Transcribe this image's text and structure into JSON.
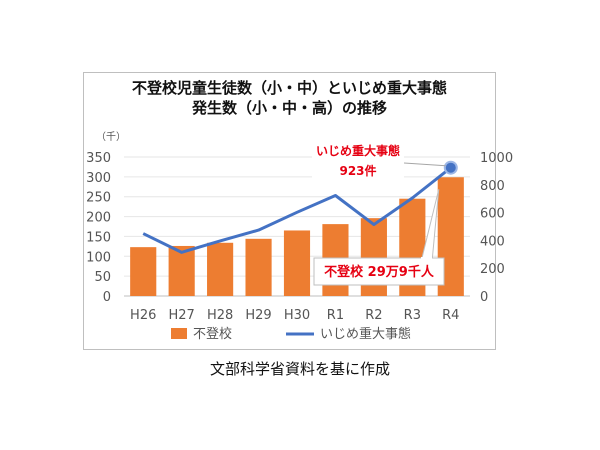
{
  "chart_data": {
    "type": "bar+line",
    "title_line1": "不登校児童生徒数（小・中）といじめ重大事態",
    "title_line2": "発生数（小・中・高）の推移",
    "left_axis_unit": "（千）",
    "categories": [
      "H26",
      "H27",
      "H28",
      "H29",
      "H30",
      "R1",
      "R2",
      "R3",
      "R4"
    ],
    "left_ticks": [
      "350",
      "300",
      "250",
      "200",
      "150",
      "100",
      "50",
      "0"
    ],
    "right_ticks": [
      "1000",
      "800",
      "600",
      "400",
      "200",
      "0"
    ],
    "ylim_left": [
      0,
      350
    ],
    "ylim_right": [
      0,
      1000
    ],
    "series": [
      {
        "name": "不登校",
        "type": "bar",
        "axis": "left",
        "values": [
          123,
          126,
          134,
          144,
          165,
          181,
          196,
          245,
          299
        ]
      },
      {
        "name": "いじめ重大事態",
        "type": "line",
        "axis": "right",
        "values": [
          449,
          314,
          396,
          474,
          602,
          723,
          514,
          705,
          923
        ]
      }
    ],
    "annotation_ijime_line1": "いじめ重大事態",
    "annotation_ijime_line2": "923件",
    "annotation_futoko": "不登校 29万9千人",
    "legend_position": "bottom",
    "colors": {
      "bar": "#ed7d31",
      "line": "#4472c4",
      "annot_red": "#e60012"
    }
  },
  "source_note": "文部科学省資料を基に作成"
}
